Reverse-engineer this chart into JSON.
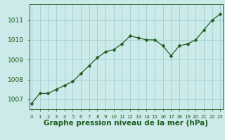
{
  "x": [
    0,
    1,
    2,
    3,
    4,
    5,
    6,
    7,
    8,
    9,
    10,
    11,
    12,
    13,
    14,
    15,
    16,
    17,
    18,
    19,
    20,
    21,
    22,
    23
  ],
  "y": [
    1006.8,
    1007.3,
    1007.3,
    1007.5,
    1007.7,
    1007.9,
    1008.3,
    1008.7,
    1009.1,
    1009.4,
    1009.5,
    1009.8,
    1010.2,
    1010.1,
    1010.0,
    1010.0,
    1009.7,
    1009.2,
    1009.7,
    1009.8,
    1010.0,
    1010.5,
    1011.0,
    1011.3
  ],
  "line_color": "#1e5c1e",
  "marker": "D",
  "marker_size": 2.5,
  "bg_color": "#cceaea",
  "grid_color": "#9ecece",
  "axis_color": "#1e5c1e",
  "xlabel": "Graphe pression niveau de la mer (hPa)",
  "xlabel_fontsize": 7.5,
  "ytick_fontsize": 6.5,
  "xtick_fontsize": 5.0,
  "yticks": [
    1007,
    1008,
    1009,
    1010,
    1011
  ],
  "xticks": [
    0,
    1,
    2,
    3,
    4,
    5,
    6,
    7,
    8,
    9,
    10,
    11,
    12,
    13,
    14,
    15,
    16,
    17,
    18,
    19,
    20,
    21,
    22,
    23
  ],
  "ylim": [
    1006.5,
    1011.8
  ],
  "xlim": [
    -0.3,
    23.3
  ]
}
